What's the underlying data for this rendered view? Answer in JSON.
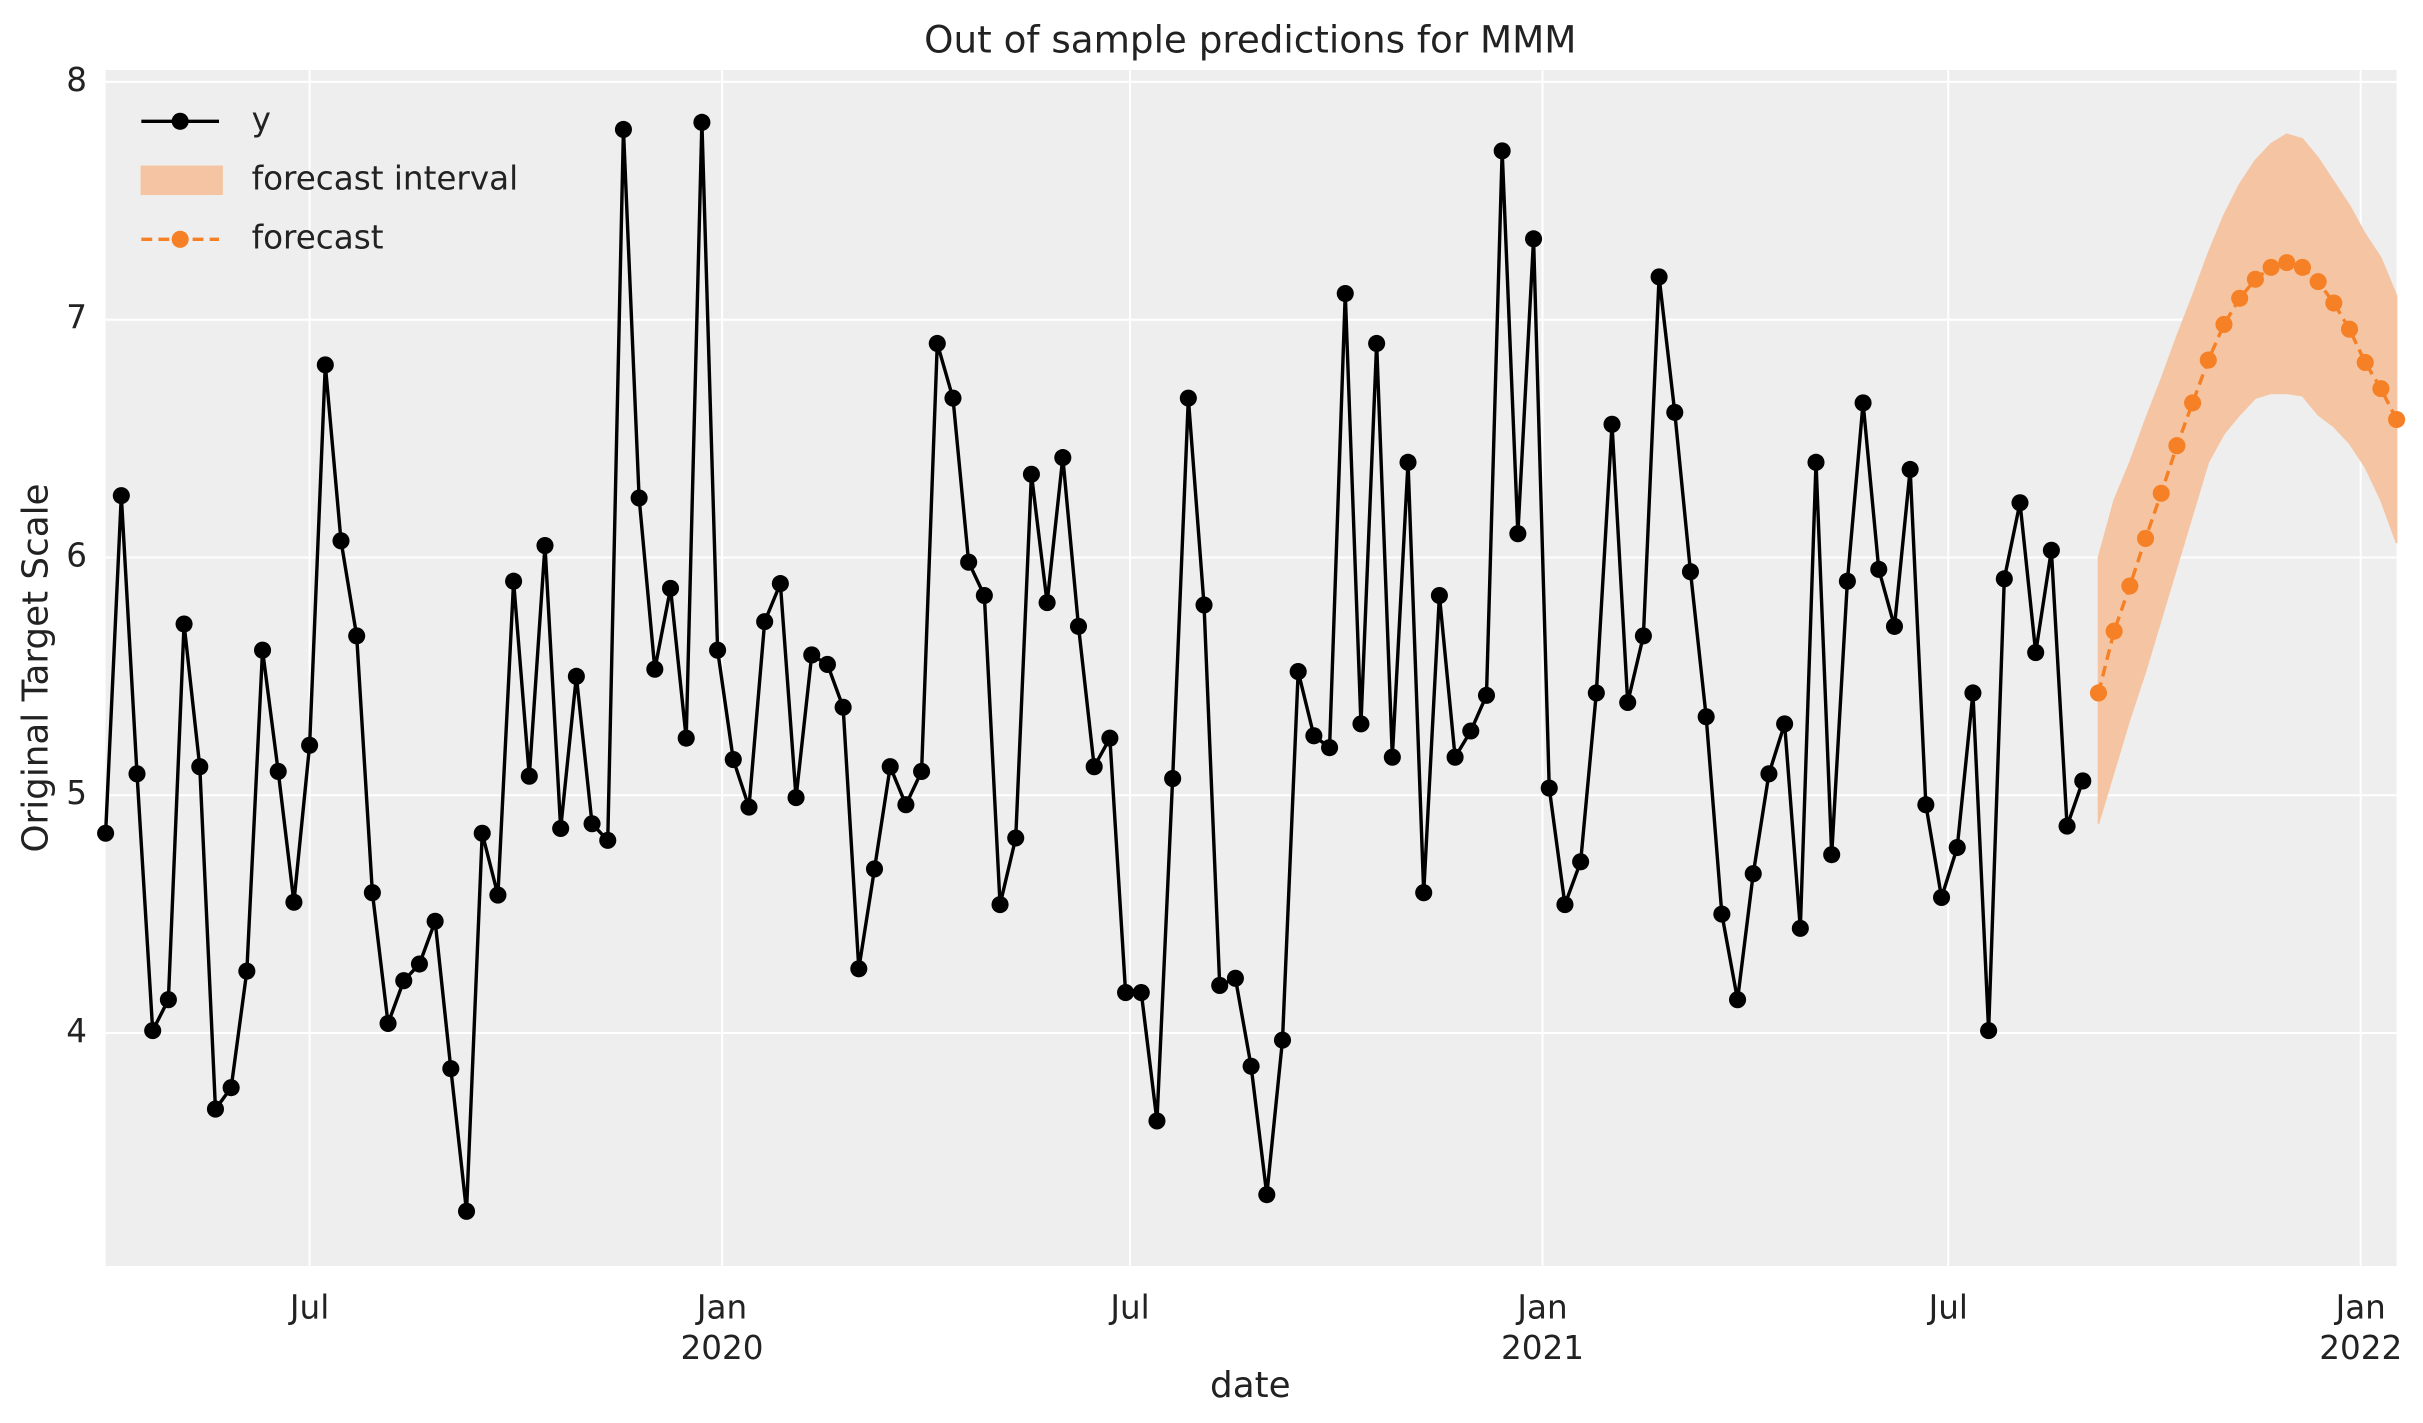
{
  "chart_data": {
    "type": "line",
    "title": "Out of sample predictions for MMM",
    "xlabel": "date",
    "ylabel": "Original Target Scale",
    "xlim": [
      "2019-04-01",
      "2022-01-17"
    ],
    "ylim": [
      3.02,
      8.05
    ],
    "yticks": [
      4,
      5,
      6,
      7,
      8
    ],
    "xticks": [
      {
        "value": "2019-07-01",
        "label": "Jul"
      },
      {
        "value": "2020-01-01",
        "label": "Jan",
        "year": "2020"
      },
      {
        "value": "2020-07-01",
        "label": "Jul"
      },
      {
        "value": "2021-01-01",
        "label": "Jan",
        "year": "2021"
      },
      {
        "value": "2021-07-01",
        "label": "Jul"
      },
      {
        "value": "2022-01-01",
        "label": "Jan",
        "year": "2022"
      }
    ],
    "grid": true,
    "legend": "upper left",
    "series": [
      {
        "name": "y",
        "kind": "line",
        "color": "#000000",
        "x": [
          "2019-04-01",
          "2019-04-08",
          "2019-04-15",
          "2019-04-22",
          "2019-04-29",
          "2019-05-06",
          "2019-05-13",
          "2019-05-20",
          "2019-05-27",
          "2019-06-03",
          "2019-06-10",
          "2019-06-17",
          "2019-06-24",
          "2019-07-01",
          "2019-07-08",
          "2019-07-15",
          "2019-07-22",
          "2019-07-29",
          "2019-08-05",
          "2019-08-12",
          "2019-08-19",
          "2019-08-26",
          "2019-09-02",
          "2019-09-09",
          "2019-09-16",
          "2019-09-23",
          "2019-09-30",
          "2019-10-07",
          "2019-10-14",
          "2019-10-21",
          "2019-10-28",
          "2019-11-04",
          "2019-11-11",
          "2019-11-18",
          "2019-11-25",
          "2019-12-02",
          "2019-12-09",
          "2019-12-16",
          "2019-12-23",
          "2019-12-30",
          "2020-01-06",
          "2020-01-13",
          "2020-01-20",
          "2020-01-27",
          "2020-02-03",
          "2020-02-10",
          "2020-02-17",
          "2020-02-24",
          "2020-03-02",
          "2020-03-09",
          "2020-03-16",
          "2020-03-23",
          "2020-03-30",
          "2020-04-06",
          "2020-04-13",
          "2020-04-20",
          "2020-04-27",
          "2020-05-04",
          "2020-05-11",
          "2020-05-18",
          "2020-05-25",
          "2020-06-01",
          "2020-06-08",
          "2020-06-15",
          "2020-06-22",
          "2020-06-29",
          "2020-07-06",
          "2020-07-13",
          "2020-07-20",
          "2020-07-27",
          "2020-08-03",
          "2020-08-10",
          "2020-08-17",
          "2020-08-24",
          "2020-08-31",
          "2020-09-07",
          "2020-09-14",
          "2020-09-21",
          "2020-09-28",
          "2020-10-05",
          "2020-10-12",
          "2020-10-19",
          "2020-10-26",
          "2020-11-02",
          "2020-11-09",
          "2020-11-16",
          "2020-11-23",
          "2020-11-30",
          "2020-12-07",
          "2020-12-14",
          "2020-12-21",
          "2020-12-28",
          "2021-01-04",
          "2021-01-11",
          "2021-01-18",
          "2021-01-25",
          "2021-02-01",
          "2021-02-08",
          "2021-02-15",
          "2021-02-22",
          "2021-03-01",
          "2021-03-08",
          "2021-03-15",
          "2021-03-22",
          "2021-03-29",
          "2021-04-05",
          "2021-04-12",
          "2021-04-19",
          "2021-04-26",
          "2021-05-03",
          "2021-05-10",
          "2021-05-17",
          "2021-05-24",
          "2021-05-31",
          "2021-06-07",
          "2021-06-14",
          "2021-06-21",
          "2021-06-28",
          "2021-07-05",
          "2021-07-12",
          "2021-07-19",
          "2021-07-26",
          "2021-08-02",
          "2021-08-09",
          "2021-08-16",
          "2021-08-23",
          "2021-08-30"
        ],
        "values": [
          4.84,
          6.26,
          5.09,
          4.01,
          4.14,
          5.72,
          5.12,
          3.68,
          3.77,
          4.26,
          5.61,
          5.1,
          4.55,
          5.21,
          6.81,
          6.07,
          5.67,
          4.59,
          4.04,
          4.22,
          4.29,
          4.47,
          3.85,
          3.25,
          4.84,
          4.58,
          5.9,
          5.08,
          6.05,
          4.86,
          5.5,
          4.88,
          4.81,
          7.8,
          6.25,
          5.53,
          5.87,
          5.24,
          7.83,
          5.61,
          5.15,
          4.95,
          5.73,
          5.89,
          4.99,
          5.59,
          5.55,
          5.37,
          4.27,
          4.69,
          5.12,
          4.96,
          5.1,
          6.9,
          6.67,
          5.98,
          5.84,
          4.54,
          4.82,
          6.35,
          5.81,
          6.42,
          5.71,
          5.12,
          5.24,
          4.17,
          4.17,
          3.63,
          5.07,
          6.67,
          5.8,
          4.2,
          4.23,
          3.86,
          3.32,
          3.97,
          5.52,
          5.25,
          5.2,
          7.11,
          5.3,
          6.9,
          5.16,
          6.4,
          4.59,
          5.84,
          5.16,
          5.27,
          5.42,
          7.71,
          6.1,
          7.34,
          5.03,
          4.54,
          4.72,
          5.43,
          6.56,
          5.39,
          5.67,
          7.18,
          6.61,
          5.94,
          5.33,
          4.5,
          4.14,
          4.67,
          5.09,
          5.3,
          4.44,
          6.4,
          4.75,
          5.9,
          6.65,
          5.95,
          5.71,
          6.37,
          4.96,
          4.57,
          4.78,
          5.43,
          4.01,
          5.91,
          6.23,
          5.6,
          6.03,
          4.87,
          5.06
        ]
      },
      {
        "name": "forecast interval",
        "kind": "band",
        "color": "#f5c5a3",
        "x": [
          "2021-09-06",
          "2021-09-13",
          "2021-09-20",
          "2021-09-27",
          "2021-10-04",
          "2021-10-11",
          "2021-10-18",
          "2021-10-25",
          "2021-11-01",
          "2021-11-08",
          "2021-11-15",
          "2021-11-22",
          "2021-11-29",
          "2021-12-06",
          "2021-12-13",
          "2021-12-20",
          "2021-12-27",
          "2022-01-03",
          "2022-01-10",
          "2022-01-17"
        ],
        "lower": [
          4.88,
          5.1,
          5.32,
          5.52,
          5.74,
          5.96,
          6.18,
          6.4,
          6.52,
          6.6,
          6.67,
          6.69,
          6.69,
          6.68,
          6.6,
          6.55,
          6.48,
          6.38,
          6.24,
          6.06
        ],
        "upper": [
          6.0,
          6.24,
          6.4,
          6.58,
          6.75,
          6.93,
          7.1,
          7.28,
          7.44,
          7.57,
          7.67,
          7.74,
          7.78,
          7.76,
          7.68,
          7.58,
          7.48,
          7.36,
          7.26,
          7.1
        ]
      },
      {
        "name": "forecast",
        "kind": "dashed",
        "color": "#f58025",
        "x": [
          "2021-09-06",
          "2021-09-13",
          "2021-09-20",
          "2021-09-27",
          "2021-10-04",
          "2021-10-11",
          "2021-10-18",
          "2021-10-25",
          "2021-11-01",
          "2021-11-08",
          "2021-11-15",
          "2021-11-22",
          "2021-11-29",
          "2021-12-06",
          "2021-12-13",
          "2021-12-20",
          "2021-12-27",
          "2022-01-03",
          "2022-01-10",
          "2022-01-17"
        ],
        "values": [
          5.43,
          5.69,
          5.88,
          6.08,
          6.27,
          6.47,
          6.65,
          6.83,
          6.98,
          7.09,
          7.17,
          7.22,
          7.24,
          7.22,
          7.16,
          7.07,
          6.96,
          6.82,
          6.71,
          6.58
        ]
      }
    ]
  }
}
